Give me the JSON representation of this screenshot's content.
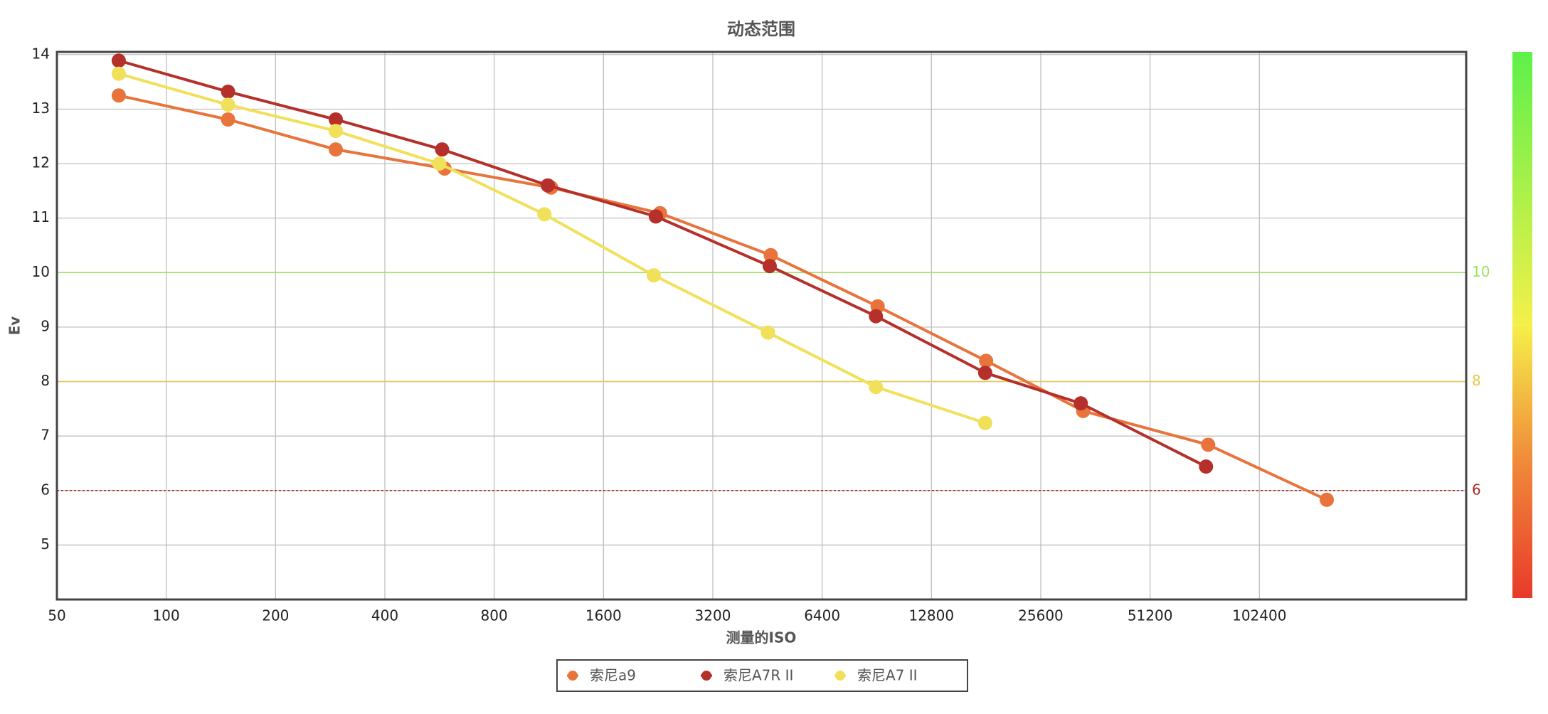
{
  "chart_data": {
    "type": "line",
    "title": "动态范围",
    "x_label": "测量的ISO",
    "y_label": "Ev",
    "x_scale": "log",
    "xlim": [
      50,
      380000
    ],
    "xticks": [
      50,
      100,
      200,
      400,
      800,
      1600,
      3200,
      6400,
      12800,
      25600,
      51200,
      102400
    ],
    "ylim": [
      4,
      14.05
    ],
    "yticks": [
      5,
      6,
      7,
      8,
      9,
      10,
      11,
      12,
      13,
      14
    ],
    "grid": true,
    "legend": "bottom",
    "series": [
      {
        "name": "索尼a9",
        "color": "#e8743b",
        "x": [
          74,
          148,
          293,
          584,
          1148,
          2290,
          4620,
          9100,
          18100,
          33500,
          74000,
          157000
        ],
        "values": [
          13.25,
          12.81,
          12.26,
          11.91,
          11.56,
          11.09,
          10.32,
          9.38,
          8.38,
          7.46,
          6.84,
          5.83
        ]
      },
      {
        "name": "索尼A7R II",
        "color": "#b5302a",
        "x": [
          74,
          148,
          293,
          575,
          1124,
          2230,
          4590,
          9000,
          18000,
          33000,
          73000
        ],
        "values": [
          13.89,
          13.32,
          12.81,
          12.26,
          11.6,
          11.03,
          10.12,
          9.2,
          8.16,
          7.6,
          6.44
        ]
      },
      {
        "name": "索尼A7 II",
        "color": "#f0e05a",
        "x": [
          74,
          148,
          293,
          565,
          1100,
          2200,
          4540,
          9000,
          18000
        ],
        "values": [
          13.65,
          13.08,
          12.6,
          12.0,
          11.07,
          9.95,
          8.9,
          7.9,
          7.24
        ]
      }
    ],
    "reference_lines": [
      {
        "value": 10,
        "color": "#9be35a",
        "dashed": false
      },
      {
        "value": 8,
        "color": "#e6c84a",
        "dashed": false
      },
      {
        "value": 6,
        "color": "#a8281e",
        "dashed": true
      }
    ]
  }
}
